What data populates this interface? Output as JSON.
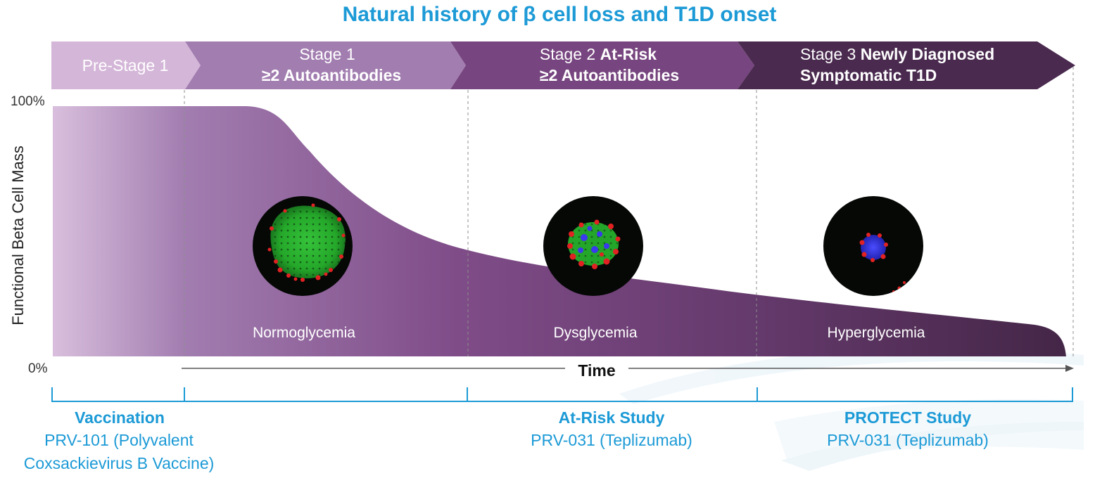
{
  "title": "Natural history of β cell loss and T1D onset",
  "stages": [
    {
      "line1": "Pre-Stage 1",
      "line1_bold": "",
      "line2": "",
      "color": "#d4b6d8"
    },
    {
      "line1": "Stage 1",
      "line1_bold": "",
      "line2": "≥2 Autoantibodies",
      "color": "#a27db0"
    },
    {
      "line1": "Stage 2 ",
      "line1_bold": "At-Risk",
      "line2": "≥2 Autoantibodies",
      "color": "#77457f"
    },
    {
      "line1": "Stage 3 ",
      "line1_bold": "Newly Diagnosed",
      "line2": "Symptomatic T1D",
      "color": "#4a2a4f"
    }
  ],
  "y_axis": {
    "label": "Functional Beta Cell Mass",
    "max_label": "100%",
    "min_label": "0%"
  },
  "x_axis": {
    "label": "Time"
  },
  "phases": [
    "Normoglycemia",
    "Dysglycemia",
    "Hyperglycemia"
  ],
  "islet_images": [
    {
      "name": "normoglycemia-islet-image",
      "desc": "large green islet"
    },
    {
      "name": "dysglycemia-islet-image",
      "desc": "mixed islet"
    },
    {
      "name": "hyperglycemia-islet-image",
      "desc": "small blue islet"
    }
  ],
  "studies": [
    {
      "name": "Vaccination",
      "drug_line1": "PRV-101 (Polyvalent",
      "drug_line2": "Coxsackievirus B Vaccine)"
    },
    {
      "name": "At-Risk Study",
      "drug_line1": "PRV-031 (Teplizumab)",
      "drug_line2": ""
    },
    {
      "name": "PROTECT Study",
      "drug_line1": "PRV-031 (Teplizumab)",
      "drug_line2": ""
    }
  ],
  "colors": {
    "accent": "#1c9ad6",
    "curve_light": "#d4b6d8",
    "curve_dark": "#4a2a4f"
  }
}
